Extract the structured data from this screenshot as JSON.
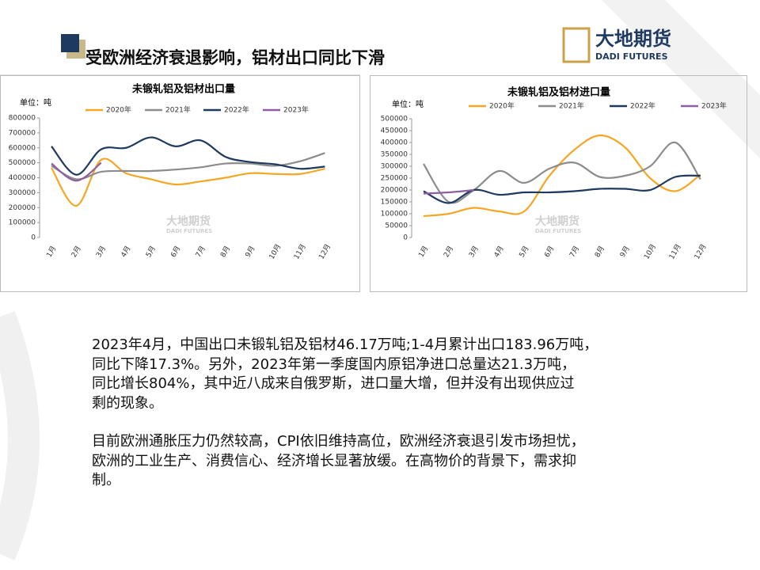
{
  "header": {
    "title": "受欧洲经济衰退影响，铝材出口同比下滑",
    "logo_cn": "大地期货",
    "logo_en": "DADI FUTURES"
  },
  "chart_data": [
    {
      "type": "line",
      "title": "未锻轧铝及铝材出口量",
      "unit": "单位：吨",
      "categories": [
        "1月",
        "2月",
        "3月",
        "4月",
        "5月",
        "6月",
        "7月",
        "8月",
        "9月",
        "10月",
        "11月",
        "12月"
      ],
      "series": [
        {
          "name": "2020年",
          "color": "#f5a623",
          "values": [
            466000,
            212000,
            520000,
            430000,
            390000,
            355000,
            375000,
            400000,
            430000,
            425000,
            425000,
            460000
          ]
        },
        {
          "name": "2021年",
          "color": "#8c8c8c",
          "values": [
            480000,
            390000,
            440000,
            445000,
            445000,
            455000,
            470000,
            495000,
            495000,
            480000,
            510000,
            565000
          ]
        },
        {
          "name": "2022年",
          "color": "#1f3a60",
          "values": [
            610000,
            420000,
            590000,
            600000,
            670000,
            610000,
            650000,
            540000,
            505000,
            490000,
            460000,
            475000
          ]
        },
        {
          "name": "2023年",
          "color": "#8e5ea2",
          "values": [
            495000,
            380000,
            500000,
            null,
            null,
            null,
            null,
            null,
            null,
            null,
            null,
            null
          ]
        }
      ],
      "ylim": [
        0,
        800000
      ],
      "yticks": [
        0,
        100000,
        200000,
        300000,
        400000,
        500000,
        600000,
        700000,
        800000
      ]
    },
    {
      "type": "line",
      "title": "未锻轧铝及铝材进口量",
      "unit": "单位：吨",
      "categories": [
        "1月",
        "2月",
        "3月",
        "4月",
        "5月",
        "6月",
        "7月",
        "8月",
        "9月",
        "10月",
        "11月",
        "12月"
      ],
      "series": [
        {
          "name": "2020年",
          "color": "#f5a623",
          "values": [
            90000,
            100000,
            125000,
            110000,
            110000,
            260000,
            370000,
            430000,
            380000,
            250000,
            195000,
            265000
          ]
        },
        {
          "name": "2021年",
          "color": "#8c8c8c",
          "values": [
            310000,
            150000,
            200000,
            280000,
            230000,
            290000,
            315000,
            255000,
            260000,
            300000,
            400000,
            245000
          ]
        },
        {
          "name": "2022年",
          "color": "#1f3a60",
          "values": [
            195000,
            145000,
            200000,
            180000,
            190000,
            190000,
            195000,
            205000,
            205000,
            200000,
            255000,
            260000
          ]
        },
        {
          "name": "2023年",
          "color": "#8e5ea2",
          "values": [
            185000,
            190000,
            200000,
            null,
            null,
            null,
            null,
            null,
            null,
            null,
            null,
            null
          ]
        }
      ],
      "ylim": [
        0,
        500000
      ],
      "yticks": [
        0,
        50000,
        100000,
        150000,
        200000,
        250000,
        300000,
        350000,
        400000,
        450000,
        500000
      ]
    }
  ],
  "paragraphs": [
    [
      "2023年4月，中国出口未锻轧铝及铝材46.17万吨;1-4月累计出口183.96万吨，",
      "同比下降17.3%。另外，2023年第一季度国内原铝净进口总量达21.3万吨，",
      "同比增长804%，其中近八成来自俄罗斯，进口量大增，但并没有出现供应过",
      "剩的现象。"
    ],
    [
      "目前欧洲通胀压力仍然较高，CPI依旧维持高位，欧洲经济衰退引发市场担忧，",
      "欧洲的工业生产、消费信心、经济增长显著放缓。在高物价的背景下，需求抑",
      "制。"
    ]
  ]
}
